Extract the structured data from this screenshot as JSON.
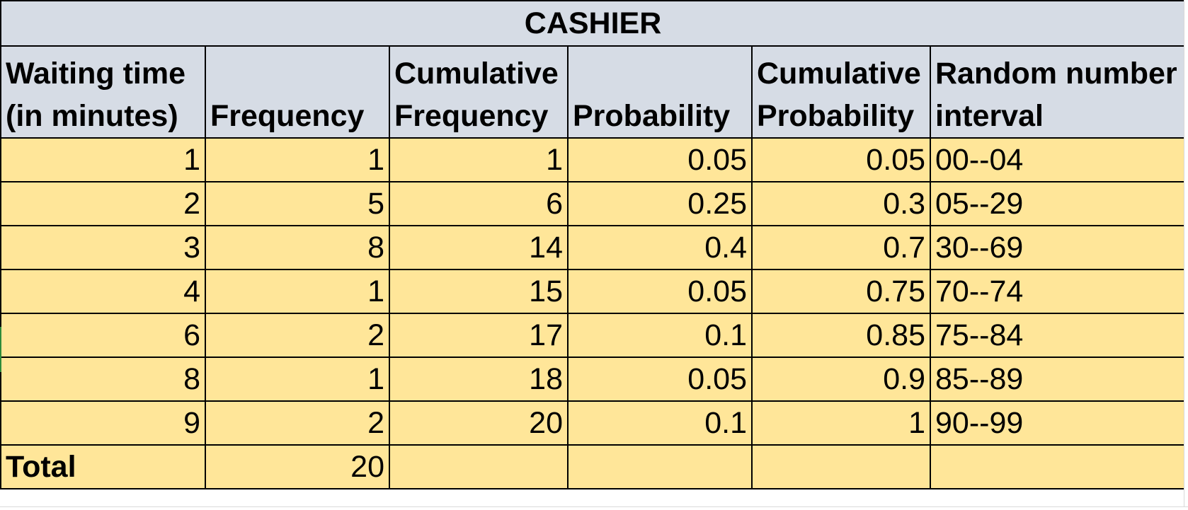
{
  "title": "CASHIER",
  "headers": [
    {
      "line1": "Waiting time",
      "line2": "(in minutes)"
    },
    {
      "line1": "",
      "line2": "Frequency"
    },
    {
      "line1": "Cumulative",
      "line2": "Frequency"
    },
    {
      "line1": "",
      "line2": "Probability"
    },
    {
      "line1": "Cumulative",
      "line2": "Probability"
    },
    {
      "line1": "Random number",
      "line2": "interval"
    }
  ],
  "rows": [
    {
      "waiting_time": "1",
      "frequency": "1",
      "cumulative_frequency": "1",
      "probability": "0.05",
      "cumulative_probability": "0.05",
      "random_interval": "00--04"
    },
    {
      "waiting_time": "2",
      "frequency": "5",
      "cumulative_frequency": "6",
      "probability": "0.25",
      "cumulative_probability": "0.3",
      "random_interval": "05--29"
    },
    {
      "waiting_time": "3",
      "frequency": "8",
      "cumulative_frequency": "14",
      "probability": "0.4",
      "cumulative_probability": "0.7",
      "random_interval": "30--69"
    },
    {
      "waiting_time": "4",
      "frequency": "1",
      "cumulative_frequency": "15",
      "probability": "0.05",
      "cumulative_probability": "0.75",
      "random_interval": "70--74"
    },
    {
      "waiting_time": "6",
      "frequency": "2",
      "cumulative_frequency": "17",
      "probability": "0.1",
      "cumulative_probability": "0.85",
      "random_interval": "75--84"
    },
    {
      "waiting_time": "8",
      "frequency": "1",
      "cumulative_frequency": "18",
      "probability": "0.05",
      "cumulative_probability": "0.9",
      "random_interval": "85--89"
    },
    {
      "waiting_time": "9",
      "frequency": "2",
      "cumulative_frequency": "20",
      "probability": "0.1",
      "cumulative_probability": "1",
      "random_interval": "90--99"
    }
  ],
  "total": {
    "label": "Total",
    "frequency": "20"
  },
  "colors": {
    "header_fill": "#d6dce5",
    "body_fill": "#ffe699",
    "border": "#000000"
  }
}
